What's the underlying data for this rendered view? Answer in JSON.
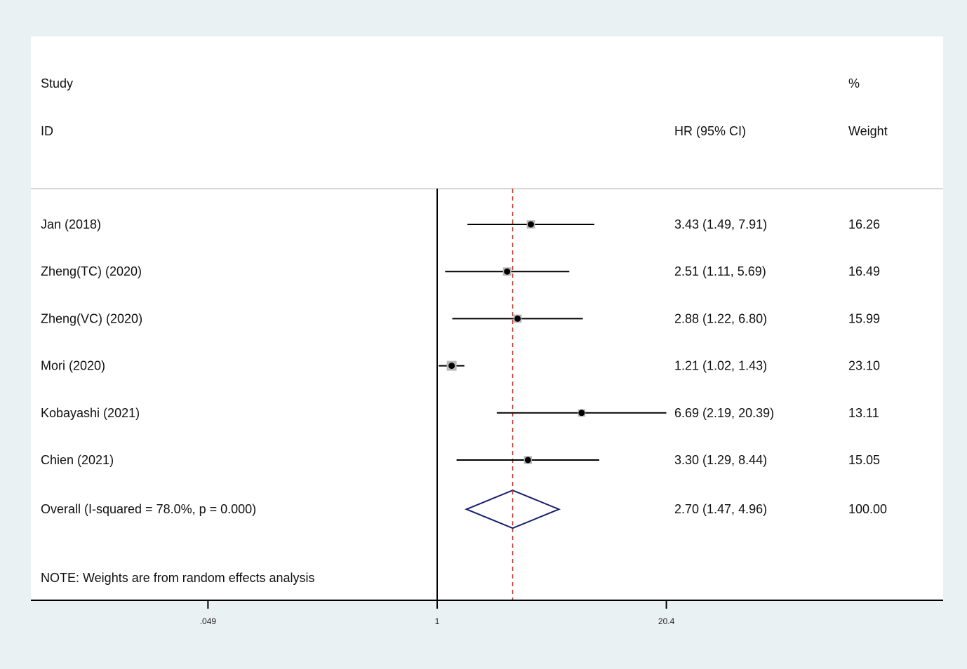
{
  "chart_data": {
    "type": "forest",
    "header": {
      "study_line1": "Study",
      "study_line2": "ID",
      "effect_label": "HR (95% CI)",
      "weight_line1": "%",
      "weight_line2": "Weight"
    },
    "x_scale": "log",
    "x_ticks": [
      {
        "value": 0.049,
        "label": ".049"
      },
      {
        "value": 1,
        "label": "1"
      },
      {
        "value": 20.4,
        "label": "20.4"
      }
    ],
    "reference_line": 1,
    "pooled_reference_line": 2.7,
    "studies": [
      {
        "name": "Jan (2018)",
        "hr": 3.43,
        "lo": 1.49,
        "hi": 7.91,
        "ci_text": "3.43 (1.49, 7.91)",
        "weight": "16.26"
      },
      {
        "name": "Zheng(TC) (2020)",
        "hr": 2.51,
        "lo": 1.11,
        "hi": 5.69,
        "ci_text": "2.51 (1.11, 5.69)",
        "weight": "16.49"
      },
      {
        "name": "Zheng(VC) (2020)",
        "hr": 2.88,
        "lo": 1.22,
        "hi": 6.8,
        "ci_text": "2.88 (1.22, 6.80)",
        "weight": "15.99"
      },
      {
        "name": "Mori (2020)",
        "hr": 1.21,
        "lo": 1.02,
        "hi": 1.43,
        "ci_text": "1.21 (1.02, 1.43)",
        "weight": "23.10"
      },
      {
        "name": "Kobayashi (2021)",
        "hr": 6.69,
        "lo": 2.19,
        "hi": 20.39,
        "ci_text": "6.69 (2.19, 20.39)",
        "weight": "13.11"
      },
      {
        "name": "Chien (2021)",
        "hr": 3.3,
        "lo": 1.29,
        "hi": 8.44,
        "ci_text": "3.30 (1.29, 8.44)",
        "weight": "15.05"
      }
    ],
    "overall": {
      "name": "Overall  (I-squared = 78.0%, p = 0.000)",
      "hr": 2.7,
      "lo": 1.47,
      "hi": 4.96,
      "ci_text": "2.70 (1.47, 4.96)",
      "weight": "100.00"
    },
    "note": "NOTE: Weights are from random effects analysis",
    "colors": {
      "background": "#eaf1f3",
      "panel": "#ffffff",
      "diamond": "#1a1f6e",
      "pooled_line": "#c0392b",
      "weight_box": "#b8b8b8",
      "point": "#000000"
    }
  }
}
